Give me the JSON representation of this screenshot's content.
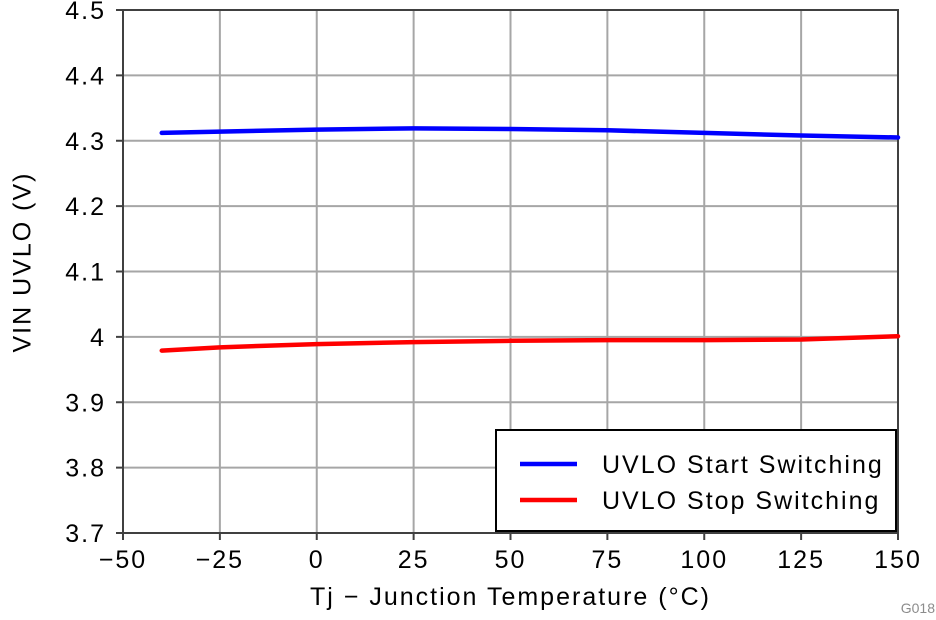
{
  "chart_data": {
    "type": "line",
    "title": "",
    "xlabel": "Tj − Junction Temperature (°C)",
    "ylabel": "VIN UVLO (V)",
    "xlim": [
      -50,
      150
    ],
    "ylim": [
      3.7,
      4.5
    ],
    "xticks": [
      -50,
      -25,
      0,
      25,
      50,
      75,
      100,
      125,
      150
    ],
    "xtick_labels": [
      "−50",
      "−25",
      "0",
      "25",
      "50",
      "75",
      "100",
      "125",
      "150"
    ],
    "yticks": [
      3.7,
      3.8,
      3.9,
      4.0,
      4.1,
      4.2,
      4.3,
      4.4,
      4.5
    ],
    "ytick_labels": [
      "3.7",
      "3.8",
      "3.9",
      "4",
      "4.1",
      "4.2",
      "4.3",
      "4.4",
      "4.5"
    ],
    "grid": true,
    "legend_position": "lower right",
    "series": [
      {
        "name": "UVLO Start Switching",
        "color": "#0000ff",
        "x": [
          -40,
          -25,
          0,
          25,
          50,
          75,
          100,
          125,
          150
        ],
        "y": [
          4.312,
          4.314,
          4.317,
          4.319,
          4.318,
          4.316,
          4.312,
          4.308,
          4.305
        ]
      },
      {
        "name": "UVLO Stop Switching",
        "color": "#ff0000",
        "x": [
          -40,
          -25,
          0,
          25,
          50,
          75,
          100,
          125,
          150
        ],
        "y": [
          3.979,
          3.984,
          3.989,
          3.992,
          3.994,
          3.995,
          3.995,
          3.996,
          4.001
        ]
      }
    ],
    "watermark": "G018"
  },
  "colors": {
    "grid": "#a6a6a6",
    "frame": "#404040",
    "text": "#000000",
    "legend_border": "#000000",
    "legend_bg": "#ffffff",
    "watermark": "#8c8c8c"
  }
}
